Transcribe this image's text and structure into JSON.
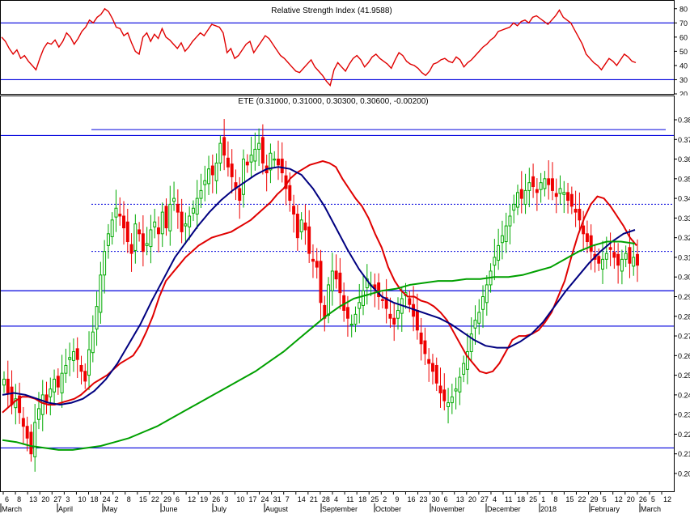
{
  "chart_data": [
    {
      "panel": "rsi",
      "type": "line",
      "title": "Relative Strength Index (41.9588)",
      "ylim": [
        20,
        85
      ],
      "y_ticks": [
        20,
        30,
        40,
        50,
        60,
        70,
        80
      ],
      "reference_lines": [
        70,
        30
      ],
      "colors": {
        "line": "#e00000",
        "reference": "#0000dd"
      },
      "series": [
        {
          "values": [
            60,
            57,
            52,
            48,
            51,
            45,
            47,
            43,
            40,
            37,
            45,
            52,
            56,
            55,
            58,
            53,
            57,
            63,
            60,
            55,
            59,
            64,
            67,
            72,
            70,
            74,
            76,
            80,
            78,
            73,
            67,
            66,
            61,
            63,
            56,
            50,
            48,
            60,
            63,
            57,
            62,
            59,
            66,
            60,
            58,
            55,
            52,
            56,
            50,
            53,
            57,
            60,
            63,
            61,
            65,
            69,
            68,
            67,
            63,
            49,
            52,
            45,
            47,
            51,
            55,
            57,
            49,
            53,
            57,
            61,
            59,
            55,
            51,
            47,
            45,
            42,
            39,
            36,
            35,
            38,
            41,
            44,
            39,
            36,
            33,
            29,
            26,
            37,
            42,
            39,
            36,
            41,
            45,
            47,
            44,
            39,
            42,
            46,
            48,
            45,
            43,
            41,
            38,
            44,
            49,
            47,
            43,
            41,
            40,
            38,
            35,
            33,
            36,
            41,
            42,
            44,
            45,
            43,
            42,
            46,
            44,
            39,
            42,
            44,
            47,
            50,
            53,
            55,
            58,
            60,
            64,
            65,
            66,
            67,
            70,
            68,
            71,
            72,
            70,
            74,
            75,
            73,
            71,
            69,
            72,
            75,
            79,
            74,
            72,
            70,
            65,
            60,
            55,
            48,
            45,
            42,
            40,
            37,
            41,
            45,
            43,
            40,
            44,
            48,
            46,
            43,
            42
          ]
        }
      ]
    },
    {
      "panel": "price",
      "type": "line",
      "title": "ETE (0.31000, 0.31000, 0.30300, 0.30600, -0.00200)",
      "ylim": [
        0.195,
        0.385
      ],
      "y_ticks": [
        0.2,
        0.21,
        0.22,
        0.23,
        0.24,
        0.25,
        0.26,
        0.27,
        0.28,
        0.29,
        0.3,
        0.31,
        0.32,
        0.33,
        0.34,
        0.35,
        0.36,
        0.37,
        0.38
      ],
      "x_day_labels": [
        "6",
        "8",
        "13",
        "20",
        "27",
        "3",
        "10",
        "18",
        "24",
        "2",
        "8",
        "15",
        "22",
        "29",
        "6",
        "12",
        "19",
        "26",
        "3",
        "10",
        "17",
        "24",
        "31",
        "7",
        "14",
        "21",
        "28",
        "4",
        "11",
        "18",
        "25",
        "2",
        "9",
        "16",
        "23",
        "30",
        "6",
        "13",
        "20",
        "27",
        "4",
        "11",
        "18",
        "25",
        "1",
        "8",
        "15",
        "22",
        "29",
        "5",
        "12",
        "20",
        "26",
        "5",
        "12"
      ],
      "x_month_labels": [
        "March",
        "April",
        "May",
        "June",
        "July",
        "August",
        "September",
        "October",
        "November",
        "December",
        "2018",
        "February",
        "March"
      ],
      "solid_levels": [
        0.372,
        0.293,
        0.275,
        0.213
      ],
      "dotted_levels": [
        0.337,
        0.313
      ],
      "top_band": [
        0.372,
        0.375
      ],
      "colors": {
        "up": "#00aa00",
        "down": "#ee0000",
        "ma_fast": "#e00000",
        "ma_mid": "#000080",
        "ma_slow": "#00a000",
        "level": "#0000dd"
      },
      "series": [
        {
          "name": "close",
          "values": [
            0.248,
            0.241,
            0.235,
            0.238,
            0.231,
            0.224,
            0.218,
            0.21,
            0.226,
            0.233,
            0.24,
            0.236,
            0.243,
            0.248,
            0.244,
            0.251,
            0.255,
            0.259,
            0.262,
            0.258,
            0.252,
            0.247,
            0.263,
            0.272,
            0.285,
            0.301,
            0.313,
            0.322,
            0.329,
            0.335,
            0.331,
            0.325,
            0.318,
            0.312,
            0.327,
            0.322,
            0.313,
            0.317,
            0.324,
            0.328,
            0.322,
            0.333,
            0.325,
            0.337,
            0.34,
            0.333,
            0.323,
            0.327,
            0.331,
            0.335,
            0.34,
            0.344,
            0.349,
            0.355,
            0.352,
            0.358,
            0.368,
            0.362,
            0.356,
            0.351,
            0.345,
            0.339,
            0.36,
            0.357,
            0.362,
            0.365,
            0.368,
            0.358,
            0.353,
            0.363,
            0.36,
            0.357,
            0.353,
            0.345,
            0.339,
            0.332,
            0.32,
            0.329,
            0.324,
            0.312,
            0.308,
            0.305,
            0.287,
            0.279,
            0.296,
            0.303,
            0.299,
            0.292,
            0.283,
            0.279,
            0.276,
            0.281,
            0.287,
            0.293,
            0.299,
            0.296,
            0.294,
            0.29,
            0.288,
            0.284,
            0.279,
            0.276,
            0.283,
            0.289,
            0.292,
            0.286,
            0.28,
            0.273,
            0.266,
            0.261,
            0.256,
            0.252,
            0.246,
            0.241,
            0.237,
            0.236,
            0.239,
            0.243,
            0.249,
            0.256,
            0.262,
            0.271,
            0.278,
            0.282,
            0.29,
            0.296,
            0.303,
            0.31,
            0.316,
            0.321,
            0.326,
            0.331,
            0.337,
            0.343,
            0.34,
            0.344,
            0.348,
            0.346,
            0.343,
            0.348,
            0.35,
            0.347,
            0.344,
            0.341,
            0.345,
            0.343,
            0.339,
            0.336,
            0.333,
            0.329,
            0.322,
            0.318,
            0.313,
            0.309,
            0.307,
            0.309,
            0.312,
            0.314,
            0.31,
            0.306,
            0.309,
            0.312,
            0.307,
            0.31,
            0.306
          ]
        },
        {
          "name": "ma_fast",
          "values": [
            0.231,
            0.234,
            0.237,
            0.239,
            0.239,
            0.238,
            0.236,
            0.235,
            0.235,
            0.236,
            0.237,
            0.238,
            0.24,
            0.243,
            0.246,
            0.248,
            0.25,
            0.253,
            0.256,
            0.258,
            0.26,
            0.265,
            0.272,
            0.28,
            0.29,
            0.298,
            0.302,
            0.306,
            0.31,
            0.313,
            0.316,
            0.318,
            0.32,
            0.321,
            0.322,
            0.323,
            0.325,
            0.327,
            0.329,
            0.332,
            0.335,
            0.338,
            0.342,
            0.345,
            0.35,
            0.353,
            0.355,
            0.357,
            0.358,
            0.359,
            0.358,
            0.356,
            0.35,
            0.345,
            0.34,
            0.336,
            0.33,
            0.322,
            0.315,
            0.305,
            0.298,
            0.293,
            0.29,
            0.29,
            0.288,
            0.287,
            0.285,
            0.282,
            0.278,
            0.272,
            0.266,
            0.26,
            0.256,
            0.252,
            0.251,
            0.252,
            0.256,
            0.262,
            0.268,
            0.27,
            0.27,
            0.271,
            0.273,
            0.277,
            0.282,
            0.29,
            0.298,
            0.31,
            0.321,
            0.33,
            0.337,
            0.341,
            0.34,
            0.336,
            0.331,
            0.326,
            0.32,
            0.316
          ]
        },
        {
          "name": "ma_mid",
          "values": [
            0.24,
            0.241,
            0.24,
            0.238,
            0.236,
            0.235,
            0.236,
            0.238,
            0.242,
            0.248,
            0.256,
            0.266,
            0.276,
            0.288,
            0.299,
            0.31,
            0.318,
            0.326,
            0.333,
            0.339,
            0.344,
            0.348,
            0.352,
            0.355,
            0.356,
            0.355,
            0.352,
            0.345,
            0.336,
            0.325,
            0.314,
            0.304,
            0.296,
            0.29,
            0.287,
            0.285,
            0.283,
            0.281,
            0.279,
            0.276,
            0.272,
            0.268,
            0.265,
            0.264,
            0.264,
            0.267,
            0.271,
            0.277,
            0.285,
            0.293,
            0.3,
            0.307,
            0.313,
            0.318,
            0.322,
            0.324
          ]
        },
        {
          "name": "ma_slow",
          "values": [
            0.217,
            0.216,
            0.214,
            0.213,
            0.212,
            0.212,
            0.213,
            0.214,
            0.216,
            0.218,
            0.221,
            0.224,
            0.228,
            0.232,
            0.236,
            0.24,
            0.244,
            0.248,
            0.252,
            0.257,
            0.262,
            0.268,
            0.274,
            0.28,
            0.285,
            0.289,
            0.291,
            0.293,
            0.294,
            0.296,
            0.297,
            0.298,
            0.298,
            0.299,
            0.299,
            0.3,
            0.3,
            0.301,
            0.303,
            0.305,
            0.309,
            0.313,
            0.316,
            0.318,
            0.318,
            0.317
          ]
        }
      ]
    }
  ]
}
